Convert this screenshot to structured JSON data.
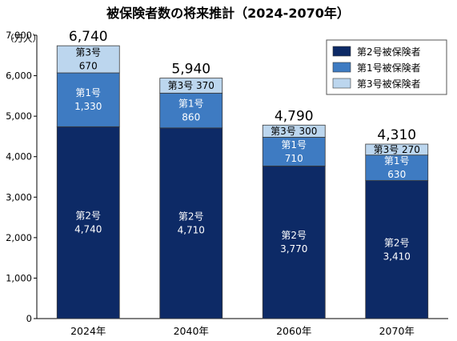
{
  "chart_data": {
    "type": "bar",
    "stacked": true,
    "title": "被保険者数の将来推計（2024-2070年）",
    "unit_label": "（万人）",
    "categories": [
      "2024年",
      "2040年",
      "2060年",
      "2070年"
    ],
    "series": [
      {
        "name": "第2号被保険者",
        "short": "第2号",
        "color": "#0d2a66",
        "values": [
          4740,
          4710,
          3770,
          3410
        ]
      },
      {
        "name": "第1号被保険者",
        "short": "第1号",
        "color": "#3e7bc2",
        "values": [
          1330,
          860,
          710,
          630
        ]
      },
      {
        "name": "第3号被保険者",
        "short": "第3号",
        "color": "#bcd6ee",
        "values": [
          670,
          370,
          300,
          270
        ]
      }
    ],
    "segment_labels": [
      [
        "第2号\n4,740",
        "第2号\n4,710",
        "第2号\n3,770",
        "第2号\n3,410"
      ],
      [
        "第1号\n1,330",
        "第1号\n860",
        "第1号\n710",
        "第1号\n630"
      ],
      [
        "第3号\n670",
        "第3号 370",
        "第3号 300",
        "第3号 270"
      ]
    ],
    "totals": [
      "6,740",
      "5,940",
      "4,790",
      "4,310"
    ],
    "ylim": [
      0,
      7000
    ],
    "yticks": [
      0,
      1000,
      2000,
      3000,
      4000,
      5000,
      6000,
      7000
    ],
    "ytick_labels": [
      "0",
      "1,000",
      "2,000",
      "3,000",
      "4,000",
      "5,000",
      "6,000",
      "7,000"
    ],
    "grid": false,
    "legend_position": "top-right"
  }
}
